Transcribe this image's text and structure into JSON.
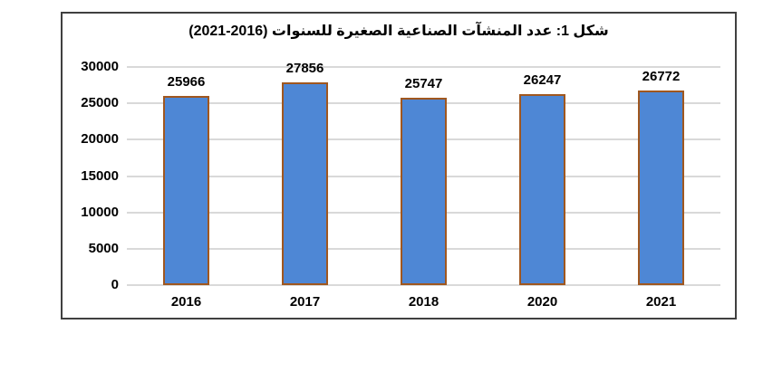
{
  "figure": {
    "title": "شكل 1: عدد المنشآت الصناعية الصغيرة للسنوات (2016-2021)"
  },
  "chart_data": {
    "type": "bar",
    "title": "شكل 1: عدد المنشآت الصناعية الصغيرة للسنوات (2016-2021)",
    "categories": [
      "2016",
      "2017",
      "2018",
      "2020",
      "2021"
    ],
    "values": [
      25966,
      27856,
      25747,
      26247,
      26772
    ],
    "data_labels": [
      25966,
      27856,
      25747,
      26247,
      26772
    ],
    "xlabel": "",
    "ylabel": "",
    "ylim": [
      0,
      30000
    ],
    "yticks": [
      0,
      5000,
      10000,
      15000,
      20000,
      25000,
      30000
    ],
    "grid": "horizontal",
    "legend": "none",
    "colors": {
      "bar_fill": "#4E87D5",
      "bar_border": "#A0571F",
      "gridline": "#D9D9D9",
      "text": "#000000",
      "box_border": "#404040",
      "background": "#FFFFFF"
    }
  }
}
